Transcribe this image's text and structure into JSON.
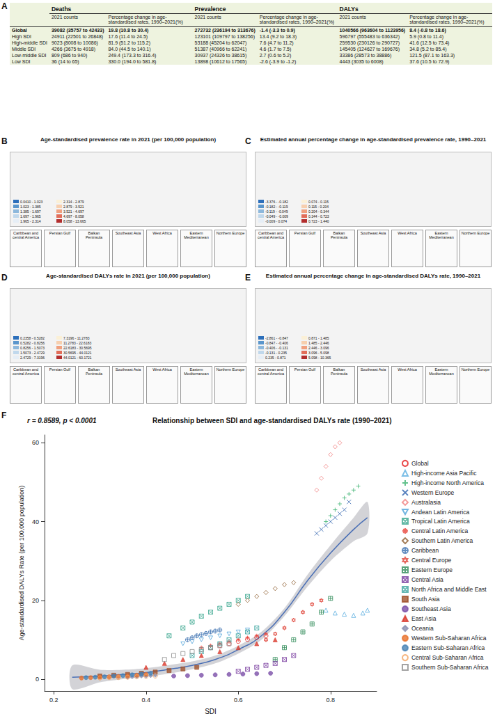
{
  "panel_letters": [
    "A",
    "B",
    "C",
    "D",
    "E",
    "F"
  ],
  "table": {
    "groups": [
      "Deaths",
      "Prevalence",
      "DALYs"
    ],
    "subheaders": [
      "2021 counts",
      "Percentage change in age-standardised rates, 1990–2021(%)"
    ],
    "rows": [
      [
        "Global",
        "39082 (35757 to 42433)",
        "19.8 (10.8 to 30.4)",
        "272732 (236194 to 313676)",
        "-1.4 (-3.3 to 0.9)",
        "1040566 (963604 to 1123956)",
        "8.4 (-0.8 to 18.6)"
      ],
      [
        "High SDI",
        "24911 (22501 to 26848)",
        "17.6 (11.4 to 24.5)",
        "123101 (109797 to 138256)",
        "13.4 (9.2 to 18.3)",
        "596797 (555483 to 636342)",
        "5.9 (0.8 to 11.4)"
      ],
      [
        "High-middle SDI",
        "9023 (8008 to 10086)",
        "81.9 (51.2 to 115.2)",
        "53188 (45204 to 62047)",
        "7.6 (4.7 to 11.2)",
        "259530 (230126 to 290727)",
        "41.6 (12.5 to 73.4)"
      ],
      [
        "Middle SDI",
        "4266 (3675 to 4918)",
        "84.0 (44.5 to 140.1)",
        "51387 (40966 to 62241)",
        "4.6 (1.7 to 7.5)",
        "145405 (124627 to 169676)",
        "34.8 (5.2 to 85.4)"
      ],
      [
        "Low-middle SDI",
        "809 (686 to 940)",
        "249.4 (173.3 to 316.4)",
        "30937 (24326 to 38615)",
        "2.7 (0.6 to 5.2)",
        "33386 (28573 to 38886)",
        "121.5 (87.1 to 163.3)"
      ],
      [
        "Low SDI",
        "36 (14 to 65)",
        "330.0 (194.0 to 581.8)",
        "13898 (10612 to 17565)",
        "-2.6 (-3.9 to -1.2)",
        "4443 (3035 to 6008)",
        "37.6 (10.5 to 72.9)"
      ]
    ]
  },
  "maps": [
    {
      "title": "Age-standardised prevalence rate in 2021 (per 100,000 population)",
      "legend_labels": [
        "0.0410 - 1.023",
        "1.023 - 1.385",
        "1.385 - 1.697",
        "1.697 - 1.965",
        "1.965 - 2.314",
        "2.314 - 2.879",
        "2.879 - 3.521",
        "3.521 - 4.697",
        "4.697 - 8.058",
        "8.058 - 13.665"
      ],
      "colors": [
        "#2c6fbb",
        "#5a96cc",
        "#8db8dc",
        "#c0d8ec",
        "#e6eef6",
        "#fbf0d6",
        "#f7cfae",
        "#f0a07f",
        "#e26d58",
        "#b22d2d"
      ],
      "insets": [
        "Caribbean and central America",
        "Persian Gulf",
        "Balkan Peninsula",
        "Southeast Asia",
        "West Africa",
        "Eastern Mediterranean",
        "Northern Europe"
      ]
    },
    {
      "title": "Estimated annual percentage change in age-standardised prevalence rate, 1990–2021",
      "legend_labels": [
        "-3.376 - -0.182",
        "-0.182 - -0.119",
        "-0.119 - -0.049",
        "-0.049 - -0.009",
        "-0.009 - 0.074",
        "0.074 - 0.115",
        "0.115 - 0.204",
        "0.204 - 0.344",
        "0.344 - 0.723",
        "0.723 - 1.440"
      ],
      "colors": [
        "#2c6fbb",
        "#5a96cc",
        "#8db8dc",
        "#c0d8ec",
        "#e6eef6",
        "#fbf0d6",
        "#f7cfae",
        "#f0a07f",
        "#e26d58",
        "#b22d2d"
      ],
      "insets": [
        "Caribbean and central America",
        "Persian Gulf",
        "Balkan Peninsula",
        "Southeast Asia",
        "West Africa",
        "Eastern Mediterranean",
        "Northern Europe"
      ]
    },
    {
      "title": "Age-standardised DALYs rate in 2021 (per 100,000 population)",
      "legend_labels": [
        "0.2358 - 0.5282",
        "0.5282 - 0.8256",
        "0.8256 - 1.5073",
        "1.5073 - 2.4729",
        "2.4729 - 7.3196",
        "7.3196 - 11.2783",
        "11.2783 - 22.6183",
        "22.6183 - 30.5695",
        "30.5695 - 44.0121",
        "44.0121 - 60.1721"
      ],
      "colors": [
        "#2c6fbb",
        "#5a96cc",
        "#8db8dc",
        "#c0d8ec",
        "#e6eef6",
        "#fbf0d6",
        "#f7cfae",
        "#f0a07f",
        "#e26d58",
        "#b22d2d"
      ],
      "insets": [
        "Caribbean and central America",
        "Persian Gulf",
        "Balkan Peninsula",
        "Southeast Asia",
        "West Africa",
        "Eastern Mediterranean",
        "Northern Europe"
      ]
    },
    {
      "title": "Estimated annual percentage change in age-standardised DALYs rate, 1990–2021",
      "legend_labels": [
        "-2.861 - -0.847",
        "-0.847 - -0.406",
        "-0.406 - -0.131",
        "-0.131 - 0.235",
        "0.235 - 0.871",
        "0.871 - 1.485",
        "1.485 - 2.446",
        "2.446 - 3.096",
        "3.096 - 5.098",
        "5.098 - 10.365"
      ],
      "colors": [
        "#2c6fbb",
        "#5a96cc",
        "#8db8dc",
        "#c0d8ec",
        "#e6eef6",
        "#fbf0d6",
        "#f7cfae",
        "#f0a07f",
        "#e26d58",
        "#b22d2d"
      ],
      "insets": [
        "Caribbean and central America",
        "Persian Gulf",
        "Balkan Peninsula",
        "Southeast Asia",
        "West Africa",
        "Eastern Mediterranean",
        "Northern Europe"
      ]
    }
  ],
  "chart_data": {
    "type": "scatter",
    "title": "Relationship between SDI and age-standardised DALYs rate (1990–2021)",
    "annotation": "r = 0.8589, p < 0.0001",
    "x_label": "SDI",
    "y_label": "Age-standardised DALYs Rate (per 100,000 population)",
    "xlim": [
      0.18,
      0.9
    ],
    "xticks": [
      0.2,
      0.4,
      0.6,
      0.8
    ],
    "ylim": [
      -3,
      62
    ],
    "yticks": [
      0,
      20,
      40,
      60
    ],
    "grid": false,
    "legend": "right",
    "fit": {
      "type": "line",
      "color": "#4a6fb5",
      "x": [
        0.24,
        0.3,
        0.35,
        0.4,
        0.45,
        0.5,
        0.55,
        0.6,
        0.65,
        0.7,
        0.75,
        0.8,
        0.85,
        0.88
      ],
      "values": [
        0.5,
        0.8,
        1.2,
        1.7,
        2.5,
        3.5,
        5,
        7.5,
        11,
        17,
        25,
        32,
        38,
        41
      ],
      "ci_lower": [
        -2.5,
        -0.8,
        0,
        0.6,
        1.4,
        2.5,
        4,
        6.5,
        10,
        16,
        23.5,
        30,
        35,
        37
      ],
      "ci_upper": [
        3.5,
        2.4,
        2.4,
        2.8,
        3.6,
        4.5,
        6,
        8.5,
        12,
        18,
        26.5,
        34,
        41,
        45
      ]
    },
    "series": [
      {
        "name": "Global",
        "color": "#e41a1c",
        "marker": "circle",
        "x": [
          0.54,
          0.56,
          0.58,
          0.6,
          0.62,
          0.64,
          0.66
        ],
        "values": [
          8,
          8.5,
          9,
          9.6,
          10.1,
          10.6,
          11
        ]
      },
      {
        "name": "High-income Asia Pacific",
        "color": "#5aaee0",
        "marker": "triangle",
        "x": [
          0.79,
          0.81,
          0.83,
          0.85,
          0.87,
          0.88
        ],
        "values": [
          17.5,
          16.8,
          16.5,
          16.2,
          16.8,
          17.5
        ]
      },
      {
        "name": "High-income North America",
        "color": "#3cb371",
        "marker": "cross",
        "x": [
          0.79,
          0.8,
          0.81,
          0.82,
          0.83,
          0.84,
          0.85,
          0.86
        ],
        "values": [
          40,
          41.5,
          43,
          44.5,
          46,
          47,
          48,
          49
        ]
      },
      {
        "name": "Western Europe",
        "color": "#2b5fad",
        "marker": "x",
        "x": [
          0.77,
          0.78,
          0.79,
          0.8,
          0.81,
          0.82,
          0.83,
          0.84
        ],
        "values": [
          37,
          38,
          39,
          40,
          41,
          42,
          43,
          45
        ]
      },
      {
        "name": "Australasia",
        "color": "#f08080",
        "marker": "diamond",
        "x": [
          0.77,
          0.78,
          0.79,
          0.8,
          0.81,
          0.82
        ],
        "values": [
          48,
          51,
          54,
          57,
          59,
          60
        ]
      },
      {
        "name": "Andean Latin America",
        "color": "#4fa3d9",
        "marker": "triangle-down",
        "x": [
          0.48,
          0.5,
          0.52,
          0.54,
          0.56,
          0.58,
          0.6,
          0.62
        ],
        "values": [
          9,
          9.5,
          10,
          10.5,
          11,
          11.5,
          12,
          12.5
        ]
      },
      {
        "name": "Tropical Latin America",
        "color": "#3aa68f",
        "marker": "square-x",
        "x": [
          0.45,
          0.48,
          0.5,
          0.52,
          0.54,
          0.56,
          0.58,
          0.6,
          0.62
        ],
        "values": [
          11,
          13,
          14.5,
          16,
          17,
          18,
          19,
          20,
          21
        ]
      },
      {
        "name": "Central Latin America",
        "color": "#e8433a",
        "marker": "asterisk",
        "x": [
          0.52,
          0.54,
          0.56,
          0.58,
          0.6,
          0.62,
          0.64,
          0.66
        ],
        "values": [
          8,
          8.5,
          9,
          9.5,
          10,
          10.5,
          11,
          11.5
        ]
      },
      {
        "name": "Southern Latin America",
        "color": "#8b5a2b",
        "marker": "diamond",
        "x": [
          0.6,
          0.62,
          0.64,
          0.66,
          0.68,
          0.7,
          0.72
        ],
        "values": [
          19,
          20,
          21,
          22,
          23,
          24,
          24.5
        ]
      },
      {
        "name": "Caribbean",
        "color": "#3a6fb0",
        "marker": "circle-plus",
        "x": [
          0.49,
          0.5,
          0.51,
          0.52,
          0.53,
          0.54,
          0.55,
          0.56
        ],
        "values": [
          10,
          10.5,
          11,
          11.3,
          11.6,
          12,
          12.2,
          12.5
        ]
      },
      {
        "name": "Central Europe",
        "color": "#e0453a",
        "marker": "star6",
        "x": [
          0.66,
          0.68,
          0.7,
          0.72,
          0.74,
          0.76,
          0.78
        ],
        "values": [
          10,
          11.5,
          13,
          15,
          17,
          19,
          20
        ]
      },
      {
        "name": "Eastern Europe",
        "color": "#2e8b57",
        "marker": "square-plus",
        "x": [
          0.68,
          0.7,
          0.72,
          0.74,
          0.76,
          0.78,
          0.8
        ],
        "values": [
          5,
          8,
          10,
          12,
          14,
          17,
          20.5
        ]
      },
      {
        "name": "Central Asia",
        "color": "#7a3fa0",
        "marker": "square-x",
        "x": [
          0.6,
          0.62,
          0.64,
          0.66,
          0.68,
          0.7,
          0.72
        ],
        "values": [
          2,
          2.5,
          3,
          3.5,
          4,
          5,
          6
        ]
      },
      {
        "name": "North Africa and Middle East",
        "color": "#3fa5a0",
        "marker": "square-x",
        "x": [
          0.5,
          0.52,
          0.54,
          0.56,
          0.58,
          0.6,
          0.62,
          0.64
        ],
        "values": [
          6,
          7,
          8,
          9,
          10,
          11,
          12,
          13
        ]
      },
      {
        "name": "South Asia",
        "color": "#a0522d",
        "marker": "rect-filled",
        "x": [
          0.3,
          0.33,
          0.36,
          0.39,
          0.42,
          0.45,
          0.48,
          0.51
        ],
        "values": [
          0.8,
          1,
          1.2,
          1.5,
          1.8,
          2.2,
          2.6,
          3
        ]
      },
      {
        "name": "Southeast Asia",
        "color": "#7b4fa8",
        "marker": "circle-filled",
        "x": [
          0.46,
          0.49,
          0.52,
          0.55,
          0.58,
          0.61,
          0.64,
          0.67
        ],
        "values": [
          0.8,
          0.9,
          1,
          1.1,
          1.2,
          1.3,
          1.4,
          1.5
        ]
      },
      {
        "name": "East Asia",
        "color": "#d9382c",
        "marker": "triangle-filled",
        "x": [
          0.4,
          0.44,
          0.48,
          0.52,
          0.56,
          0.6,
          0.64,
          0.68
        ],
        "values": [
          3,
          4,
          5,
          6,
          7,
          8,
          9,
          10
        ]
      },
      {
        "name": "Oceania",
        "color": "#8a8fb0",
        "marker": "diamond-filled",
        "x": [
          0.36,
          0.37,
          0.38,
          0.39,
          0.4,
          0.41,
          0.42
        ],
        "values": [
          0.5,
          0.6,
          0.7,
          0.8,
          0.8,
          0.9,
          1
        ]
      },
      {
        "name": "Western Sub-Saharan Africa",
        "color": "#e8702a",
        "marker": "circle-filled",
        "x": [
          0.26,
          0.28,
          0.3,
          0.32,
          0.34,
          0.36,
          0.38,
          0.4
        ],
        "values": [
          0.3,
          0.4,
          0.5,
          0.6,
          0.7,
          0.8,
          1,
          1.2
        ]
      },
      {
        "name": "Eastern Sub-Saharan Africa",
        "color": "#4682b4",
        "marker": "circle-filled",
        "x": [
          0.27,
          0.29,
          0.31,
          0.33,
          0.35,
          0.37,
          0.39,
          0.41
        ],
        "values": [
          0.4,
          0.5,
          0.6,
          0.8,
          0.9,
          1.1,
          1.3,
          1.5
        ]
      },
      {
        "name": "Central Sub-Saharan Africa",
        "color": "#f4a460",
        "marker": "circle",
        "x": [
          0.3,
          0.32,
          0.34,
          0.36,
          0.38,
          0.4,
          0.42
        ],
        "values": [
          0.3,
          0.4,
          0.4,
          0.5,
          0.6,
          0.7,
          0.8
        ]
      },
      {
        "name": "Southern Sub-Saharan Africa",
        "color": "#8c8c8c",
        "marker": "rect",
        "x": [
          0.44,
          0.46,
          0.48,
          0.5,
          0.52,
          0.54,
          0.56,
          0.58
        ],
        "values": [
          5,
          6,
          6.5,
          7,
          7.5,
          8,
          8.5,
          9
        ]
      }
    ]
  }
}
